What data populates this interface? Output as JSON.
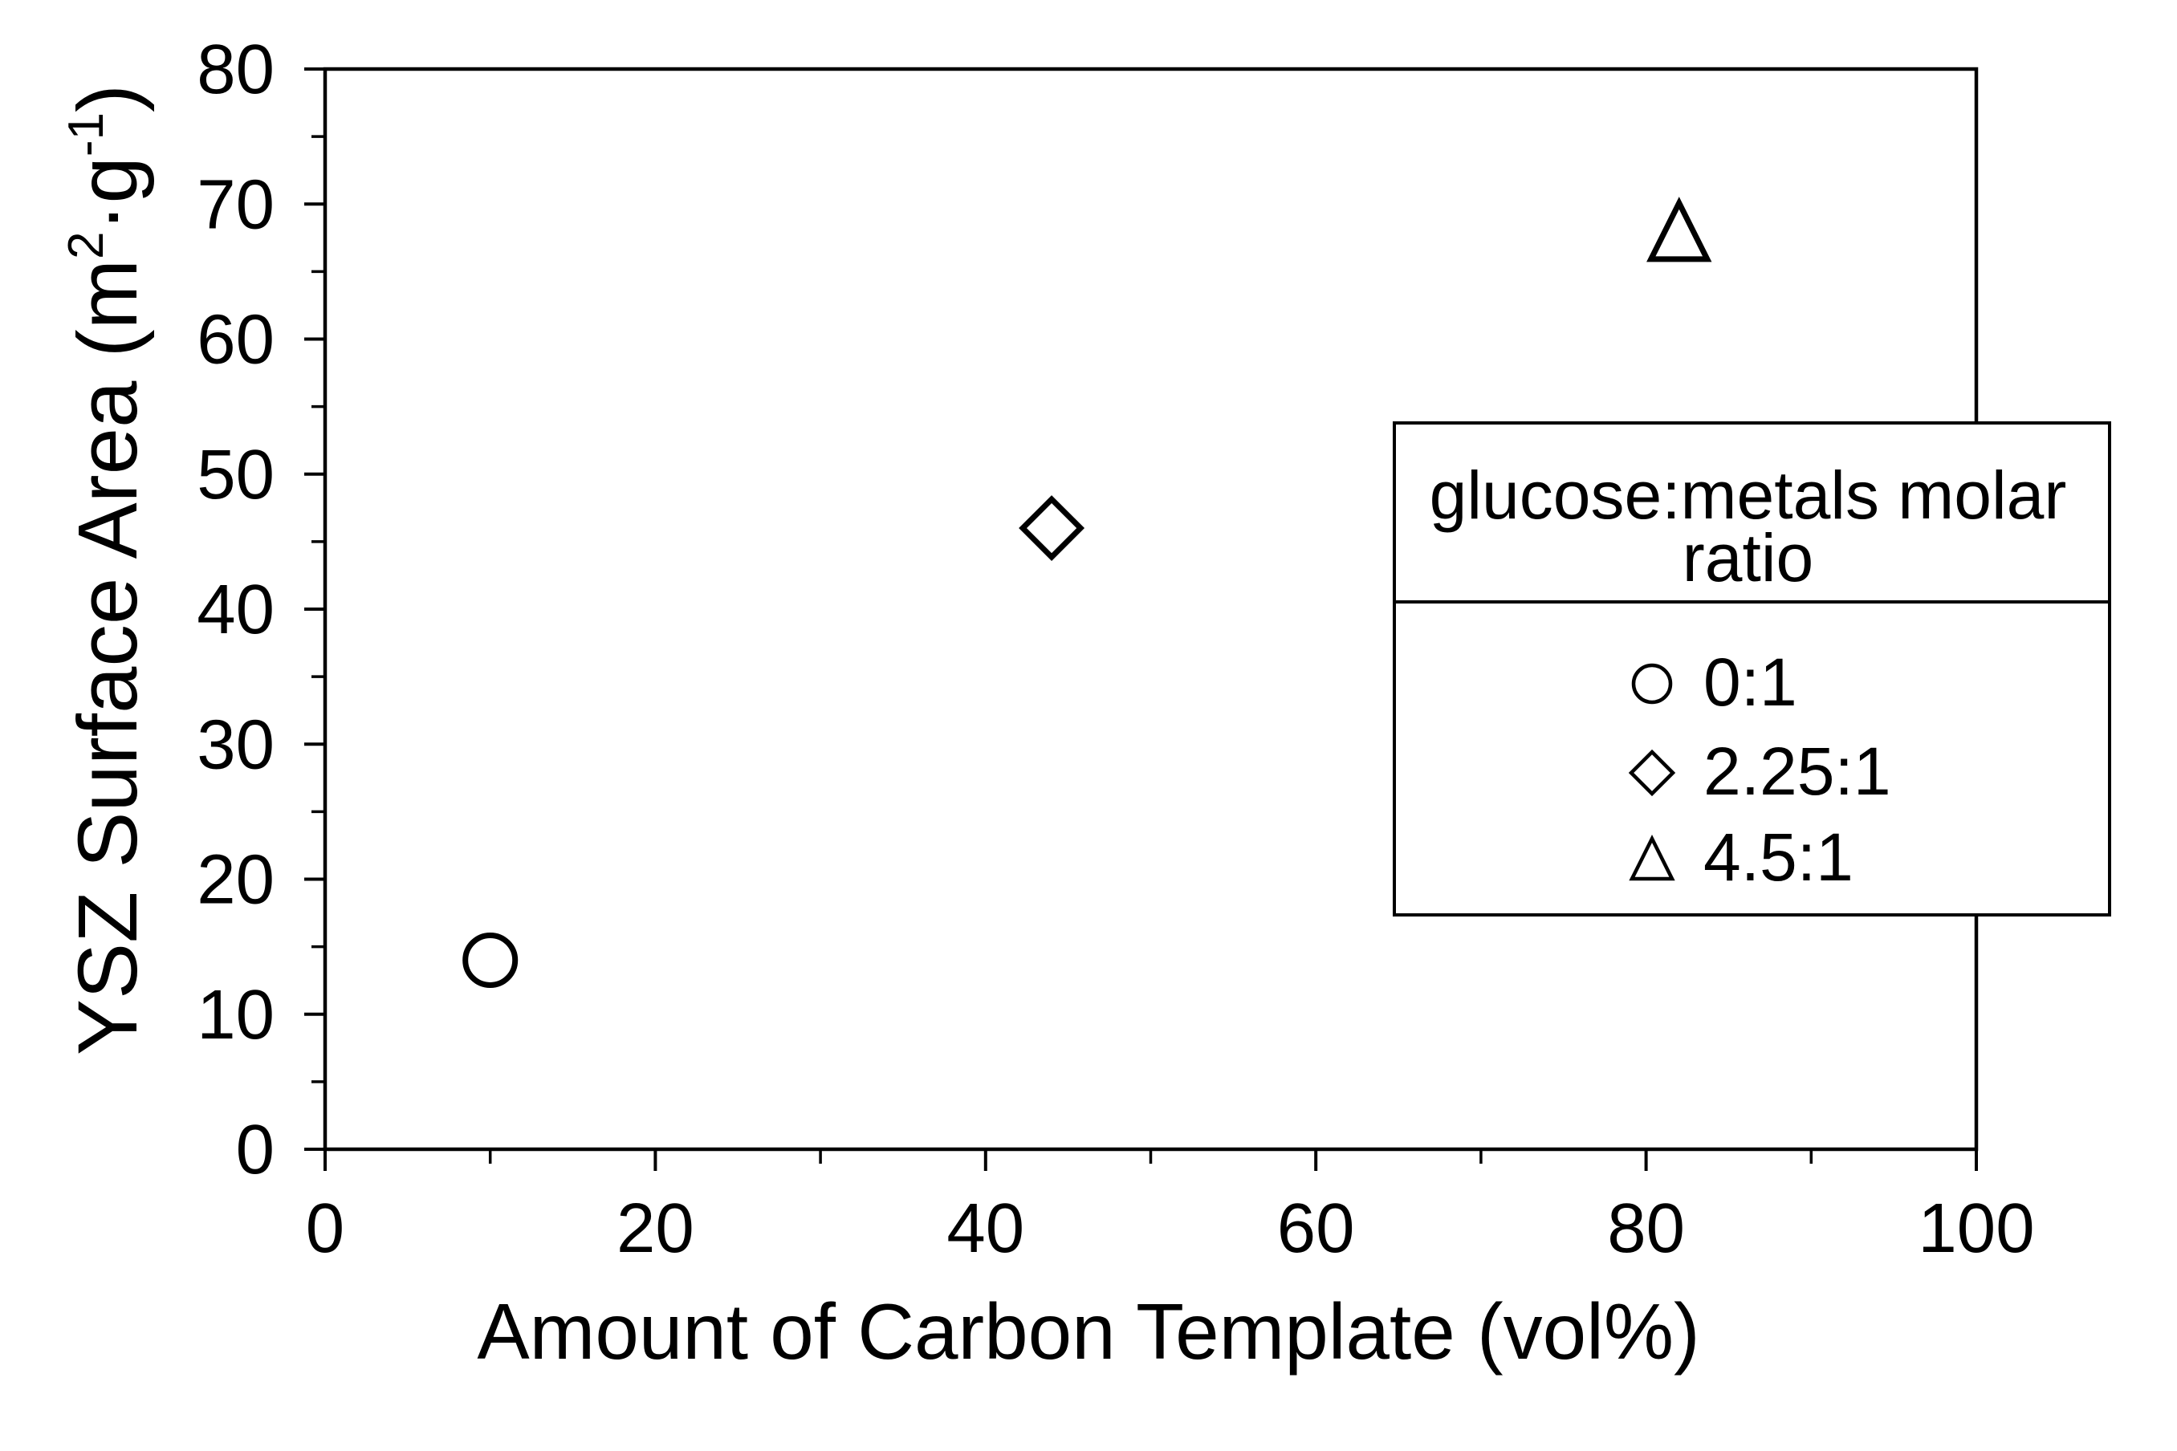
{
  "chart_data": {
    "type": "scatter",
    "xlabel": "Amount of Carbon Template (vol%)",
    "ylabel": "YSZ Surface Area (m²·g⁻¹)",
    "ylabel_parts": [
      {
        "t": "YSZ Surface Area (m"
      },
      {
        "t": "2",
        "sup": true
      },
      {
        "t": "·g"
      },
      {
        "t": "-1",
        "sup": true
      },
      {
        "t": ")"
      }
    ],
    "xlim": [
      0,
      100
    ],
    "ylim": [
      0,
      80
    ],
    "x_major_ticks": [
      0,
      20,
      40,
      60,
      80,
      100
    ],
    "x_minor_ticks": [
      10,
      30,
      50,
      70,
      90
    ],
    "y_major_ticks": [
      0,
      10,
      20,
      30,
      40,
      50,
      60,
      70,
      80
    ],
    "y_minor_ticks": [
      5,
      15,
      25,
      35,
      45,
      55,
      65,
      75
    ],
    "grid": false,
    "legend": {
      "title": "glucose:metals molar ratio",
      "title_lines": [
        "glucose:metals molar",
        "ratio"
      ],
      "position": "upper-right"
    },
    "series": [
      {
        "name": "0:1",
        "marker": "circle",
        "x": [
          10
        ],
        "y": [
          14
        ]
      },
      {
        "name": "2.25:1",
        "marker": "diamond",
        "x": [
          44
        ],
        "y": [
          46
        ]
      },
      {
        "name": "4.5:1",
        "marker": "triangle",
        "x": [
          82
        ],
        "y": [
          68
        ]
      }
    ],
    "colors": {
      "foreground": "#000000",
      "background": "#ffffff",
      "marker_fill": "#ffffff"
    }
  }
}
